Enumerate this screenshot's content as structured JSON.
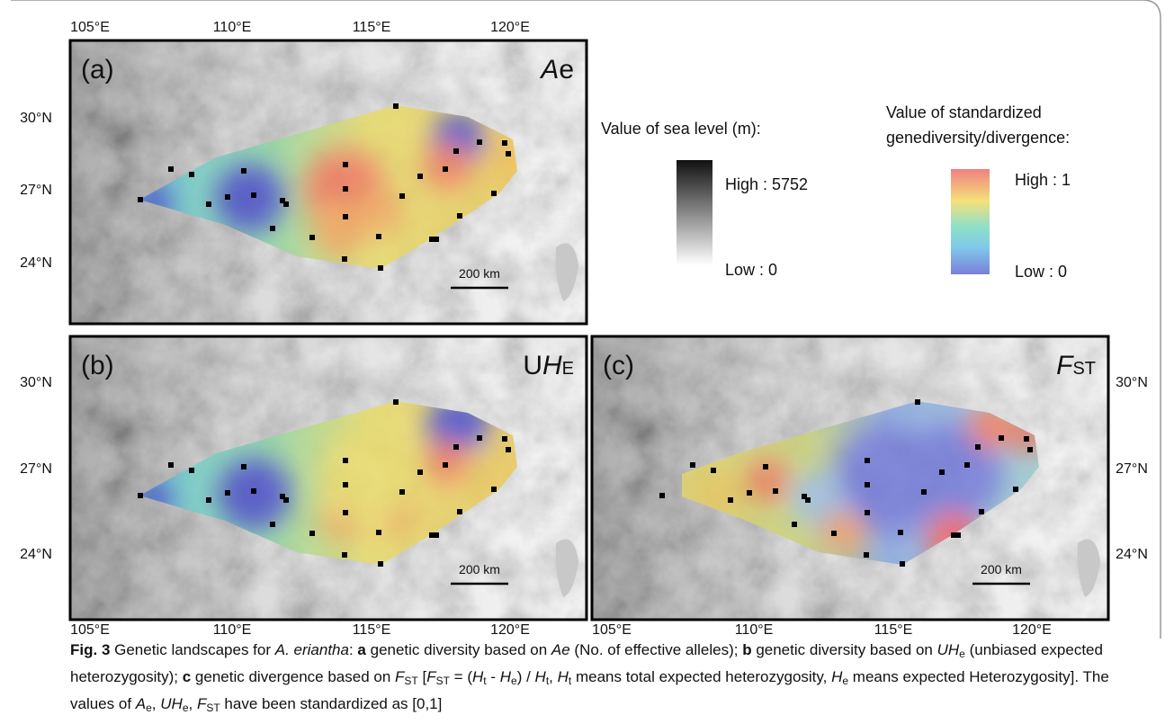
{
  "panels": [
    {
      "label": "(a)",
      "variable": [
        "A",
        "e"
      ]
    },
    {
      "label": "(b)",
      "variable": [
        "U",
        "H",
        "E"
      ]
    },
    {
      "label": "(c)",
      "variable": [
        "F",
        "ST"
      ]
    }
  ],
  "lon_ticks": [
    "105°E",
    "110°E",
    "115°E",
    "120°E"
  ],
  "lat_ticks": [
    "30°N",
    "27°N",
    "24°N"
  ],
  "scale_bar": "200 km",
  "legend_elevation": {
    "title": "Value of sea level (m):",
    "high": "High : 5752",
    "low": "Low : 0"
  },
  "legend_diversity": {
    "title": [
      "Value of standardized",
      "genediversity/divergence:"
    ],
    "high": "High : 1",
    "low": "Low : 0"
  },
  "caption": [
    "Fig. 3",
    "  Genetic landscapes for ",
    "A. eriantha",
    ": ",
    "a",
    " genetic diversity based on ",
    "Ae",
    " (No. of effective alleles); ",
    "b",
    " genetic diversity based on ",
    "UH",
    "e",
    " (unbiased expected heterozygosity); ",
    "c",
    " genetic divergence based on ",
    "F",
    "ST",
    " [",
    "F",
    "ST",
    " = (",
    "H",
    "t",
    " - ",
    "H",
    "e",
    ") / ",
    "H",
    "t",
    ", ",
    "H",
    "t",
    " means total expected heterozygosity, ",
    "H",
    "e",
    " means expected Heterozygosity]. The values of ",
    "A",
    "e",
    ", ",
    "UH",
    "e",
    ", ",
    "F",
    "ST",
    " have been standardized as [0,1]"
  ]
}
